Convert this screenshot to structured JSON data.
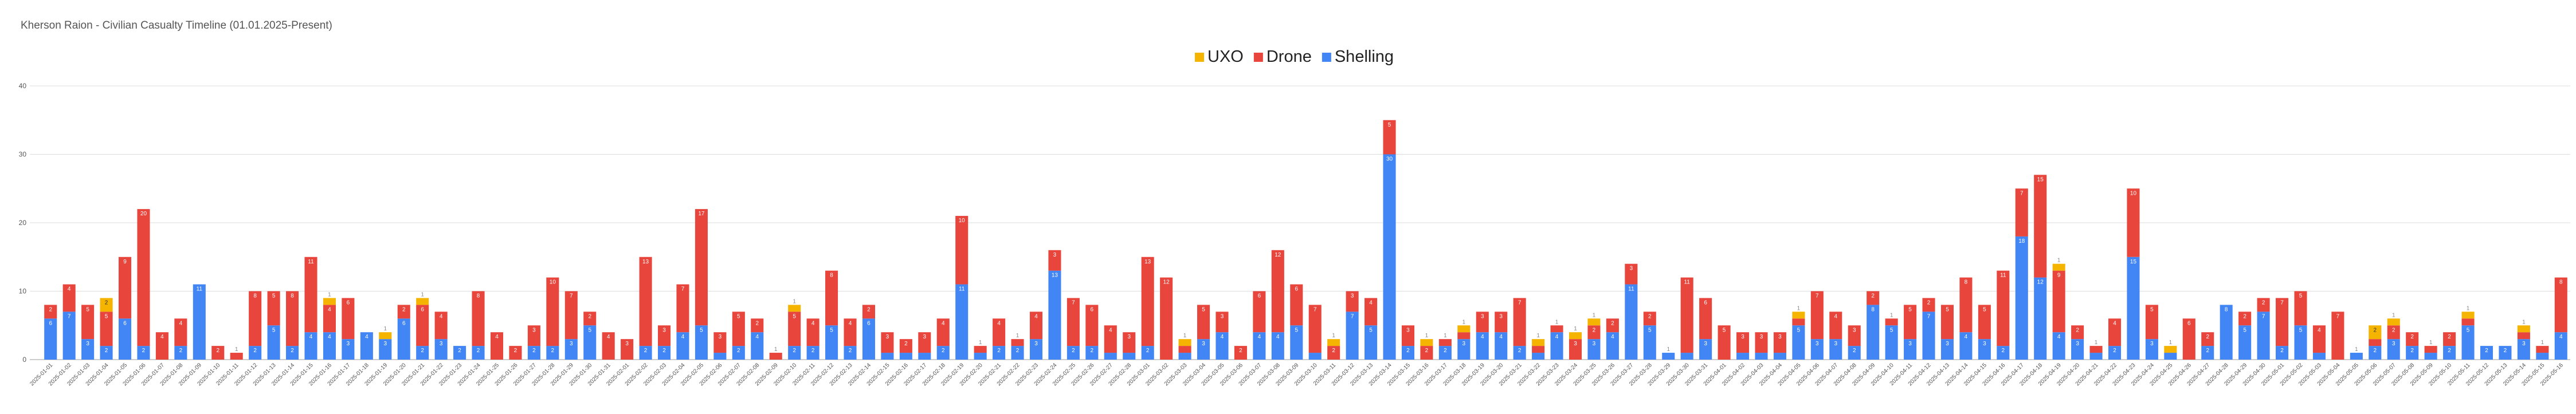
{
  "chart_data": {
    "type": "stacked_bar",
    "title": "Kherson Raion - Civilian Casualty Timeline (01.01.2025-Present)",
    "categories": [
      "2025-01-01",
      "2025-01-02",
      "2025-01-03",
      "2025-01-04",
      "2025-01-05",
      "2025-01-06",
      "2025-01-07",
      "2025-01-08",
      "2025-01-09",
      "2025-01-10",
      "2025-01-11",
      "2025-01-12",
      "2025-01-13",
      "2025-01-14",
      "2025-01-15",
      "2025-01-16",
      "2025-01-17",
      "2025-01-18",
      "2025-01-19",
      "2025-01-20",
      "2025-01-21",
      "2025-01-22",
      "2025-01-23",
      "2025-01-24",
      "2025-01-25",
      "2025-01-26",
      "2025-01-27",
      "2025-01-28",
      "2025-01-29",
      "2025-01-30",
      "2025-01-31",
      "2025-02-01",
      "2025-02-02",
      "2025-02-03",
      "2025-02-04",
      "2025-02-05",
      "2025-02-06",
      "2025-02-07",
      "2025-02-08",
      "2025-02-09",
      "2025-02-10",
      "2025-02-11",
      "2025-02-12",
      "2025-02-13",
      "2025-02-14",
      "2025-02-15",
      "2025-02-16",
      "2025-02-17",
      "2025-02-18",
      "2025-02-19",
      "2025-02-20",
      "2025-02-21",
      "2025-02-22",
      "2025-02-23",
      "2025-02-24",
      "2025-02-25",
      "2025-02-26",
      "2025-02-27",
      "2025-02-28",
      "2025-03-01",
      "2025-03-02",
      "2025-03-03",
      "2025-03-04",
      "2025-03-05",
      "2025-03-06",
      "2025-03-07",
      "2025-03-08",
      "2025-03-09",
      "2025-03-10",
      "2025-03-11",
      "2025-03-12",
      "2025-03-13",
      "2025-03-14",
      "2025-03-15",
      "2025-03-16",
      "2025-03-17",
      "2025-03-18",
      "2025-03-19",
      "2025-03-20",
      "2025-03-21",
      "2025-03-22",
      "2025-03-23",
      "2025-03-24",
      "2025-03-25",
      "2025-03-26",
      "2025-03-27",
      "2025-03-28",
      "2025-03-29",
      "2025-03-30",
      "2025-03-31",
      "2025-04-01",
      "2025-04-02",
      "2025-04-03",
      "2025-04-04",
      "2025-04-05",
      "2025-04-06",
      "2025-04-07",
      "2025-04-08",
      "2025-04-09",
      "2025-04-10",
      "2025-04-11",
      "2025-04-12",
      "2025-04-13",
      "2025-04-14",
      "2025-04-15",
      "2025-04-16",
      "2025-04-17",
      "2025-04-18",
      "2025-04-19",
      "2025-04-20",
      "2025-04-21",
      "2025-04-22",
      "2025-04-23",
      "2025-04-24",
      "2025-04-25",
      "2025-04-26",
      "2025-04-27",
      "2025-04-28",
      "2025-04-29",
      "2025-04-30",
      "2025-05-01",
      "2025-05-02",
      "2025-05-03",
      "2025-05-04",
      "2025-05-05",
      "2025-05-06",
      "2025-05-07",
      "2025-05-08",
      "2025-05-09",
      "2025-05-10",
      "2025-05-11",
      "2025-05-12",
      "2025-05-13",
      "2025-05-14",
      "2025-05-15",
      "2025-05-16"
    ],
    "series": [
      {
        "name": "UXO",
        "color": "#f4b400",
        "values": [
          0,
          0,
          0,
          2,
          0,
          0,
          0,
          0,
          0,
          0,
          0,
          0,
          0,
          0,
          0,
          1,
          0,
          0,
          1,
          0,
          1,
          0,
          0,
          0,
          0,
          0,
          0,
          0,
          0,
          0,
          0,
          0,
          0,
          0,
          0,
          0,
          0,
          0,
          0,
          0,
          1,
          0,
          0,
          0,
          0,
          0,
          0,
          0,
          0,
          0,
          0,
          0,
          0,
          0,
          0,
          0,
          0,
          0,
          0,
          0,
          0,
          1,
          0,
          0,
          0,
          0,
          0,
          0,
          0,
          1,
          0,
          0,
          0,
          0,
          1,
          0,
          1,
          0,
          0,
          0,
          1,
          0,
          1,
          1,
          0,
          0,
          0,
          0,
          0,
          0,
          0,
          0,
          0,
          0,
          1,
          0,
          0,
          0,
          0,
          0,
          0,
          0,
          0,
          0,
          0,
          0,
          0,
          0,
          1,
          0,
          0,
          0,
          0,
          0,
          1,
          0,
          0,
          0,
          0,
          0,
          0,
          0,
          0,
          0,
          0,
          2,
          1,
          0,
          0,
          0,
          1,
          0,
          0,
          1,
          0,
          0
        ]
      },
      {
        "name": "Drone",
        "color": "#e8453c",
        "values": [
          2,
          4,
          5,
          5,
          9,
          20,
          4,
          4,
          0,
          2,
          1,
          8,
          5,
          8,
          11,
          4,
          6,
          0,
          0,
          2,
          6,
          4,
          0,
          8,
          4,
          2,
          3,
          10,
          7,
          2,
          4,
          3,
          13,
          3,
          7,
          17,
          3,
          5,
          2,
          1,
          5,
          4,
          8,
          4,
          2,
          3,
          2,
          3,
          4,
          10,
          1,
          4,
          1,
          4,
          3,
          7,
          6,
          4,
          3,
          13,
          12,
          1,
          5,
          3,
          2,
          6,
          12,
          6,
          7,
          2,
          3,
          4,
          5,
          3,
          2,
          1,
          1,
          3,
          3,
          7,
          1,
          1,
          3,
          2,
          2,
          3,
          2,
          0,
          11,
          6,
          5,
          3,
          3,
          3,
          1,
          7,
          4,
          3,
          2,
          1,
          5,
          2,
          5,
          8,
          5,
          11,
          7,
          15,
          9,
          2,
          1,
          4,
          10,
          5,
          0,
          6,
          2,
          0,
          2,
          2,
          7,
          5,
          4,
          7,
          0,
          1,
          2,
          2,
          1,
          2,
          1,
          0,
          0,
          1,
          1,
          8
        ]
      },
      {
        "name": "Shelling",
        "color": "#4285f4",
        "values": [
          6,
          7,
          3,
          2,
          6,
          2,
          0,
          2,
          11,
          0,
          0,
          2,
          5,
          2,
          4,
          4,
          3,
          4,
          3,
          6,
          2,
          3,
          2,
          2,
          0,
          0,
          2,
          2,
          3,
          5,
          0,
          0,
          2,
          2,
          4,
          5,
          1,
          2,
          4,
          0,
          2,
          2,
          5,
          2,
          6,
          1,
          1,
          1,
          2,
          11,
          1,
          2,
          2,
          3,
          13,
          2,
          2,
          1,
          1,
          2,
          0,
          1,
          3,
          4,
          0,
          4,
          4,
          5,
          1,
          0,
          7,
          5,
          30,
          2,
          0,
          2,
          3,
          4,
          4,
          2,
          1,
          4,
          0,
          3,
          4,
          11,
          5,
          1,
          1,
          3,
          0,
          1,
          1,
          1,
          5,
          3,
          3,
          2,
          8,
          5,
          3,
          7,
          3,
          4,
          3,
          2,
          18,
          12,
          4,
          3,
          1,
          2,
          15,
          3,
          1,
          0,
          2,
          8,
          5,
          7,
          2,
          5,
          1,
          0,
          1,
          2,
          3,
          2,
          1,
          2,
          5,
          2,
          2,
          3,
          1,
          4
        ]
      }
    ],
    "ylim": [
      0,
      40
    ],
    "yticks": [
      0,
      10,
      20,
      30,
      40
    ],
    "grid": true,
    "legend": "top"
  }
}
